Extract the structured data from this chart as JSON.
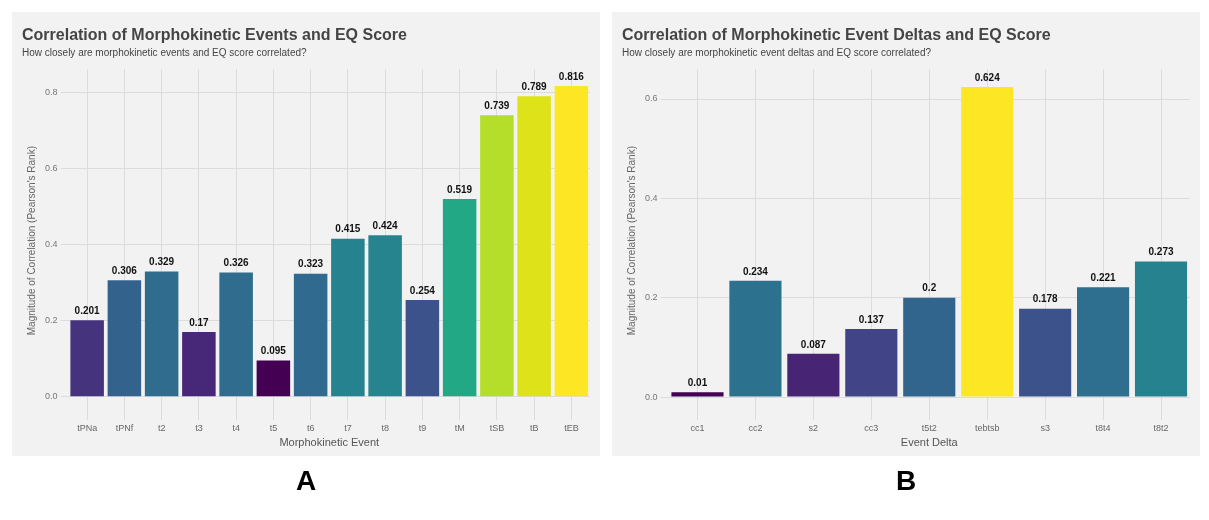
{
  "chart_data": [
    {
      "type": "bar",
      "title": "Correlation of Morphokinetic Events and EQ Score",
      "subtitle": "How closely are morphokinetic events and EQ score correlated?",
      "xlabel": "Morphokinetic Event",
      "ylabel": "Magnitude of Correlation (Pearson's Rank)",
      "categories": [
        "tPNa",
        "tPNf",
        "t2",
        "t3",
        "t4",
        "t5",
        "t6",
        "t7",
        "t8",
        "t9",
        "tM",
        "tSB",
        "tB",
        "tEB"
      ],
      "values": [
        0.201,
        0.306,
        0.329,
        0.17,
        0.326,
        0.095,
        0.323,
        0.415,
        0.424,
        0.254,
        0.519,
        0.739,
        0.789,
        0.816
      ],
      "colors": [
        "#46337e",
        "#33638d",
        "#2f6c8e",
        "#472878",
        "#2f6c8e",
        "#440154",
        "#306a8e",
        "#26828e",
        "#25848e",
        "#3b528b",
        "#22a884",
        "#b5de2b",
        "#dde318",
        "#fde725"
      ],
      "ylim": [
        -0.04,
        0.86
      ],
      "yticks": [
        {
          "value": 0,
          "label": "0.0"
        },
        0.2,
        0.4,
        0.6,
        0.8
      ],
      "grid": true,
      "legend": false,
      "data_labels": true,
      "annotations": [
        "A"
      ]
    },
    {
      "type": "bar",
      "title": "Correlation of Morphokinetic Event Deltas and EQ Score",
      "subtitle": "How closely are morphokinetic event deltas and EQ score correlated?",
      "xlabel": "Event Delta",
      "ylabel": "Magnitude of Correlation (Pearson's Rank)",
      "categories": [
        "cc1",
        "cc2",
        "s2",
        "cc3",
        "t5t2",
        "tebtsb",
        "s3",
        "t8t4",
        "t8t2"
      ],
      "values": [
        0.01,
        0.234,
        0.087,
        0.137,
        0.2,
        0.624,
        0.178,
        0.221,
        0.273
      ],
      "colors": [
        "#440154",
        "#2c728e",
        "#482475",
        "#414487",
        "#32658e",
        "#fde725",
        "#3b528b",
        "#2e6e8e",
        "#26828e"
      ],
      "ylim": [
        -0.03,
        0.66
      ],
      "yticks": [
        {
          "value": 0,
          "label": "0.0"
        },
        0.2,
        0.4,
        0.6
      ],
      "grid": true,
      "legend": false,
      "data_labels": true,
      "annotations": [
        "B"
      ]
    }
  ]
}
